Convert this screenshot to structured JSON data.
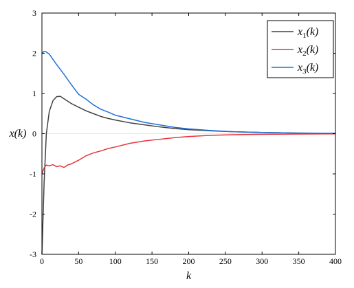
{
  "chart_data": {
    "type": "line",
    "title": "",
    "xlabel": "k",
    "ylabel": "x(k)",
    "xlim": [
      0,
      400
    ],
    "ylim": [
      -3,
      3
    ],
    "xticks": [
      0,
      50,
      100,
      150,
      200,
      250,
      300,
      350,
      400
    ],
    "yticks": [
      -3,
      -2,
      -1,
      0,
      1,
      2,
      3
    ],
    "grid": false,
    "zero_line": true,
    "legend_position": "top-right",
    "series": [
      {
        "name": "x1(k)",
        "legend_base": "x",
        "legend_sub": "1",
        "legend_tail": "(k)",
        "color": "#404040",
        "x": [
          0,
          3,
          6,
          10,
          15,
          20,
          25,
          30,
          40,
          50,
          60,
          70,
          80,
          90,
          100,
          120,
          140,
          160,
          180,
          200,
          230,
          260,
          300,
          350,
          400
        ],
        "y": [
          -3.0,
          -1.2,
          0.0,
          0.55,
          0.82,
          0.92,
          0.93,
          0.87,
          0.75,
          0.66,
          0.57,
          0.5,
          0.43,
          0.38,
          0.34,
          0.27,
          0.22,
          0.17,
          0.13,
          0.1,
          0.07,
          0.05,
          0.03,
          0.015,
          0.01
        ]
      },
      {
        "name": "x2(k)",
        "legend_base": "x",
        "legend_sub": "2",
        "legend_tail": "(k)",
        "color": "#e8333a",
        "x": [
          0,
          3,
          6,
          10,
          15,
          20,
          25,
          30,
          35,
          40,
          50,
          60,
          70,
          80,
          90,
          100,
          120,
          140,
          160,
          180,
          200,
          230,
          260,
          300,
          350,
          400
        ],
        "y": [
          -1.0,
          -0.85,
          -0.78,
          -0.8,
          -0.77,
          -0.82,
          -0.8,
          -0.84,
          -0.78,
          -0.75,
          -0.66,
          -0.55,
          -0.48,
          -0.43,
          -0.37,
          -0.33,
          -0.24,
          -0.18,
          -0.14,
          -0.1,
          -0.07,
          -0.04,
          -0.025,
          -0.015,
          -0.008,
          -0.005
        ]
      },
      {
        "name": "x3(k)",
        "legend_base": "x",
        "legend_sub": "3",
        "legend_tail": "(k)",
        "color": "#1f6fd6",
        "x": [
          0,
          3,
          6,
          10,
          15,
          20,
          25,
          30,
          40,
          50,
          60,
          70,
          80,
          90,
          100,
          120,
          140,
          160,
          180,
          200,
          230,
          260,
          300,
          350,
          400
        ],
        "y": [
          2.0,
          2.05,
          2.03,
          1.98,
          1.85,
          1.72,
          1.6,
          1.48,
          1.22,
          0.98,
          0.86,
          0.72,
          0.61,
          0.54,
          0.46,
          0.37,
          0.28,
          0.22,
          0.16,
          0.12,
          0.08,
          0.05,
          0.03,
          0.015,
          0.01
        ]
      }
    ]
  }
}
